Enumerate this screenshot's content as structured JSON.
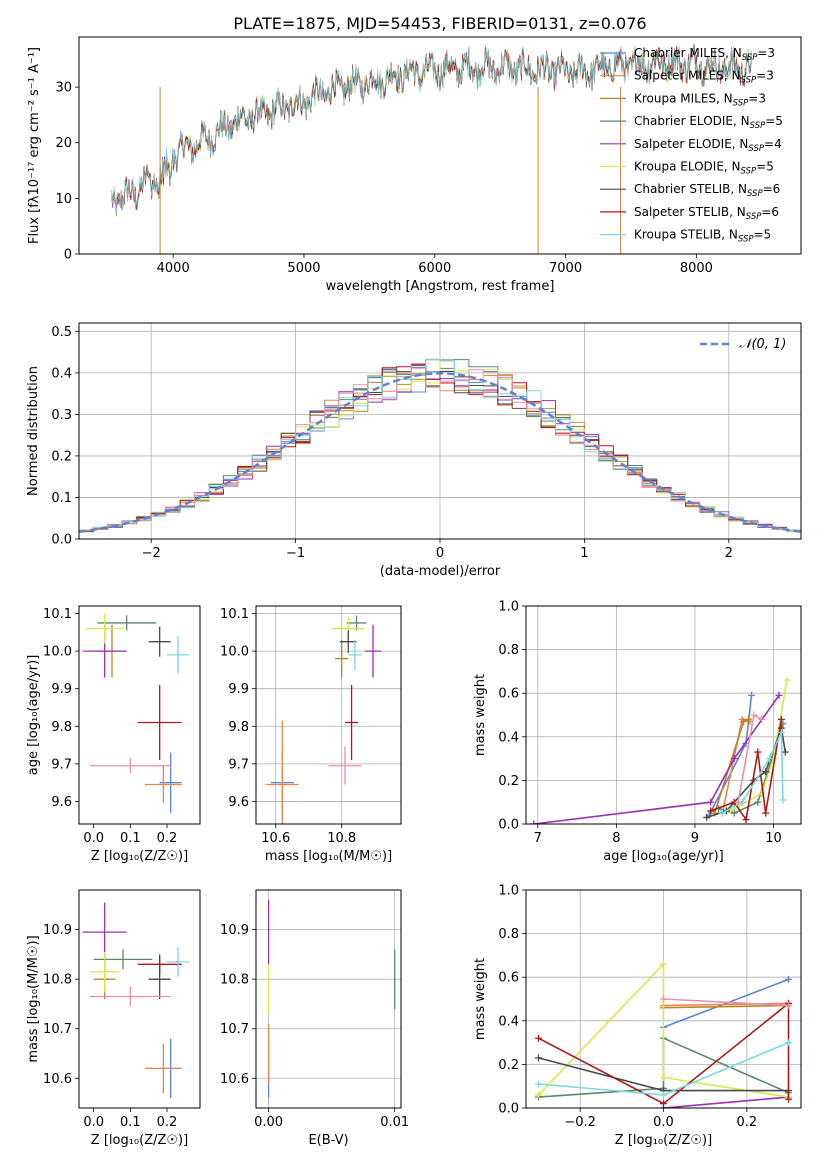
{
  "figure_title": "PLATE=1875, MJD=54453, FIBERID=0131, z=0.076",
  "colors": {
    "Chabrier MILES": "#5b84d6",
    "Salpeter MILES": "#e8854a",
    "Kroupa MILES": "#b8862a",
    "Chabrier ELODIE": "#5a8a6a",
    "Salpeter ELODIE": "#9b2fb5",
    "Kroupa ELODIE": "#d8e84a",
    "Chabrier STELIB": "#4a4a4a",
    "Salpeter STELIB": "#b01818",
    "Kroupa STELIB": "#7ad8e0",
    "pink": "#e890b0",
    "normal_curve": "#5b84d6"
  },
  "chart_data": [
    {
      "id": "spectrum",
      "type": "line",
      "title": "PLATE=1875, MJD=54453, FIBERID=0131, z=0.076",
      "xlabel": "wavelength [Angstrom, rest frame]",
      "ylabel": "Flux [fλ10⁻¹⁷ erg cm⁻² s⁻¹ A⁻¹]",
      "xlim": [
        3280,
        8800
      ],
      "ylim": [
        0,
        39
      ],
      "x_ticks": [
        4000,
        5000,
        6000,
        7000,
        8000
      ],
      "y_ticks": [
        0,
        10,
        20,
        30
      ],
      "legend_position": "top-right",
      "legend": [
        {
          "label": "Chabrier MILES, N",
          "sub": "SSP",
          "suffix": "=3"
        },
        {
          "label": "Salpeter MILES, N",
          "sub": "SSP",
          "suffix": "=3"
        },
        {
          "label": "Kroupa MILES, N",
          "sub": "SSP",
          "suffix": "=3"
        },
        {
          "label": "Chabrier ELODIE, N",
          "sub": "SSP",
          "suffix": "=5"
        },
        {
          "label": "Salpeter ELODIE, N",
          "sub": "SSP",
          "suffix": "=4"
        },
        {
          "label": "Kroupa ELODIE, N",
          "sub": "SSP",
          "suffix": "=5"
        },
        {
          "label": "Chabrier STELIB, N",
          "sub": "SSP",
          "suffix": "=6"
        },
        {
          "label": "Salpeter STELIB, N",
          "sub": "SSP",
          "suffix": "=6"
        },
        {
          "label": "Kroupa STELIB, N",
          "sub": "SSP",
          "suffix": "=5"
        }
      ],
      "continuum": {
        "x": [
          3530,
          3700,
          3850,
          4000,
          4200,
          4500,
          4800,
          5000,
          5200,
          5500,
          5800,
          6000,
          6300,
          6500,
          6700,
          6900,
          7100,
          7300,
          7500,
          7800,
          8000,
          8200,
          8400
        ],
        "y": [
          9.5,
          11,
          14,
          18,
          20,
          24,
          26,
          27.5,
          29.5,
          31,
          32.5,
          33,
          33.5,
          33.5,
          33.2,
          33,
          32.5,
          33.5,
          34,
          34.5,
          34,
          33.5,
          33.5
        ]
      }
    },
    {
      "id": "residual_hist",
      "type": "line",
      "xlabel": "(data-model)/error",
      "ylabel": "Normed distribution",
      "xlim": [
        -2.5,
        2.5
      ],
      "ylim": [
        0,
        0.52
      ],
      "x_ticks": [
        -2,
        -1,
        0,
        1,
        2
      ],
      "y_ticks": [
        0.0,
        0.1,
        0.2,
        0.3,
        0.4,
        0.5
      ],
      "legend_position": "top-right",
      "legend": [
        {
          "label": "𝒩(0, 1)"
        }
      ],
      "curve": "normal(0,1) pdf",
      "bin_width": 0.1
    },
    {
      "id": "age_vs_Z",
      "type": "scatter",
      "xlabel": "Z [log₁₀(Z/Z☉)]",
      "ylabel": "age  [log₁₀(age/yr)]",
      "xlim": [
        -0.04,
        0.29
      ],
      "ylim": [
        9.54,
        10.12
      ],
      "x_ticks": [
        0.0,
        0.1,
        0.2
      ],
      "y_ticks": [
        9.6,
        9.7,
        9.8,
        9.9,
        10.0,
        10.1
      ],
      "points": [
        {
          "model": "Chabrier MILES",
          "x": 0.21,
          "y": 9.65,
          "xerr": 0.03,
          "yerr": 0.08
        },
        {
          "model": "Salpeter MILES",
          "x": 0.19,
          "y": 9.645,
          "xerr": 0.05,
          "yerr": 0.05
        },
        {
          "model": "Kroupa MILES",
          "x": 0.05,
          "y": 10.0,
          "xerr": 0.04,
          "yerr": 0.07
        },
        {
          "model": "Chabrier ELODIE",
          "x": 0.09,
          "y": 10.075,
          "xerr": 0.08,
          "yerr": 0.02
        },
        {
          "model": "Salpeter ELODIE",
          "x": 0.03,
          "y": 10.0,
          "xerr": 0.06,
          "yerr": 0.07
        },
        {
          "model": "Kroupa ELODIE",
          "x": 0.03,
          "y": 10.06,
          "xerr": 0.05,
          "yerr": 0.04
        },
        {
          "model": "Chabrier STELIB",
          "x": 0.18,
          "y": 10.025,
          "xerr": 0.03,
          "yerr": 0.04
        },
        {
          "model": "Salpeter STELIB",
          "x": 0.18,
          "y": 9.81,
          "xerr": 0.06,
          "yerr": 0.1
        },
        {
          "model": "Kroupa STELIB",
          "x": 0.23,
          "y": 9.99,
          "xerr": 0.03,
          "yerr": 0.05
        },
        {
          "model": "pink",
          "x": 0.1,
          "y": 9.695,
          "xerr": 0.11,
          "yerr": 0.02
        }
      ]
    },
    {
      "id": "age_vs_mass",
      "type": "scatter",
      "xlabel": "mass [log₁₀(M/M☉)]",
      "ylabel": "",
      "xlim": [
        10.54,
        10.98
      ],
      "ylim": [
        9.54,
        10.12
      ],
      "x_ticks": [
        10.6,
        10.8
      ],
      "y_ticks": [
        9.6,
        9.7,
        9.8,
        9.9,
        10.0,
        10.1
      ],
      "points": [
        {
          "model": "Chabrier MILES",
          "x": 10.62,
          "y": 9.65,
          "xerr": 0.035,
          "yerr": 0.085
        },
        {
          "model": "Salpeter MILES",
          "x": 10.62,
          "y": 9.645,
          "xerr": 0.05,
          "yerr": 0.17
        },
        {
          "model": "Kroupa MILES",
          "x": 10.8,
          "y": 9.98,
          "xerr": 0.02,
          "yerr": 0.05
        },
        {
          "model": "Chabrier ELODIE",
          "x": 10.845,
          "y": 10.075,
          "xerr": 0.03,
          "yerr": 0.02
        },
        {
          "model": "Salpeter ELODIE",
          "x": 10.895,
          "y": 10.0,
          "xerr": 0.025,
          "yerr": 0.07
        },
        {
          "model": "Kroupa ELODIE",
          "x": 10.82,
          "y": 10.06,
          "xerr": 0.05,
          "yerr": 0.03
        },
        {
          "model": "Chabrier STELIB",
          "x": 10.82,
          "y": 10.025,
          "xerr": 0.025,
          "yerr": 0.03
        },
        {
          "model": "Salpeter STELIB",
          "x": 10.83,
          "y": 9.81,
          "xerr": 0.02,
          "yerr": 0.1
        },
        {
          "model": "Kroupa STELIB",
          "x": 10.84,
          "y": 9.99,
          "xerr": 0.02,
          "yerr": 0.04
        },
        {
          "model": "pink",
          "x": 10.81,
          "y": 9.695,
          "xerr": 0.05,
          "yerr": 0.05
        }
      ]
    },
    {
      "id": "weight_vs_age",
      "type": "line",
      "xlabel": "age  [log₁₀(age/yr)]",
      "ylabel": "mass weight",
      "xlim": [
        6.85,
        10.35
      ],
      "ylim": [
        0,
        1.0
      ],
      "x_ticks": [
        7,
        8,
        9,
        10
      ],
      "y_ticks": [
        0.0,
        0.2,
        0.4,
        0.6,
        0.8,
        1.0
      ],
      "series": [
        {
          "model": "Chabrier MILES",
          "x": [
            9.18,
            9.65,
            9.72
          ],
          "y": [
            0.04,
            0.37,
            0.59
          ]
        },
        {
          "model": "Salpeter MILES",
          "x": [
            9.35,
            9.6,
            9.7
          ],
          "y": [
            0.05,
            0.48,
            0.47
          ]
        },
        {
          "model": "Kroupa MILES",
          "x": [
            9.25,
            9.62,
            9.68
          ],
          "y": [
            0.05,
            0.47,
            0.48
          ]
        },
        {
          "model": "Chabrier ELODIE",
          "x": [
            9.3,
            9.5,
            9.8,
            10.0,
            10.12
          ],
          "y": [
            0.07,
            0.05,
            0.1,
            0.32,
            0.46
          ]
        },
        {
          "model": "Salpeter ELODIE",
          "x": [
            6.95,
            9.2,
            9.5,
            10.07
          ],
          "y": [
            0.0,
            0.1,
            0.3,
            0.59
          ]
        },
        {
          "model": "Kroupa ELODIE",
          "x": [
            9.45,
            9.85,
            10.0,
            10.17
          ],
          "y": [
            0.06,
            0.14,
            0.3,
            0.66
          ]
        },
        {
          "model": "Chabrier STELIB",
          "x": [
            9.15,
            9.4,
            9.75,
            9.9,
            10.1,
            10.15
          ],
          "y": [
            0.03,
            0.06,
            0.2,
            0.24,
            0.44,
            0.33
          ]
        },
        {
          "model": "Salpeter STELIB",
          "x": [
            9.2,
            9.5,
            9.65,
            9.8,
            9.9,
            10.1
          ],
          "y": [
            0.06,
            0.1,
            0.02,
            0.33,
            0.05,
            0.48
          ]
        },
        {
          "model": "Kroupa STELIB",
          "x": [
            9.35,
            9.6,
            9.95,
            10.1,
            10.12
          ],
          "y": [
            0.05,
            0.1,
            0.3,
            0.42,
            0.11
          ]
        },
        {
          "model": "pink",
          "x": [
            9.55,
            9.75,
            9.85
          ],
          "y": [
            0.1,
            0.5,
            0.48
          ]
        }
      ]
    },
    {
      "id": "mass_vs_Z",
      "type": "scatter",
      "xlabel": "Z [log₁₀(Z/Z☉)]",
      "ylabel": "mass [log₁₀(M/M☉)]",
      "xlim": [
        -0.04,
        0.29
      ],
      "ylim": [
        10.54,
        10.98
      ],
      "x_ticks": [
        0.0,
        0.1,
        0.2
      ],
      "y_ticks": [
        10.6,
        10.7,
        10.8,
        10.9
      ],
      "points": [
        {
          "model": "Chabrier MILES",
          "x": 0.21,
          "y": 10.62,
          "xerr": 0.03,
          "yerr": 0.06
        },
        {
          "model": "Salpeter MILES",
          "x": 0.19,
          "y": 10.62,
          "xerr": 0.05,
          "yerr": 0.05
        },
        {
          "model": "Kroupa MILES",
          "x": 0.03,
          "y": 10.8,
          "xerr": 0.03,
          "yerr": 0.04
        },
        {
          "model": "Chabrier ELODIE",
          "x": 0.08,
          "y": 10.84,
          "xerr": 0.08,
          "yerr": 0.02
        },
        {
          "model": "Salpeter ELODIE",
          "x": 0.03,
          "y": 10.895,
          "xerr": 0.06,
          "yerr": 0.06
        },
        {
          "model": "Kroupa ELODIE",
          "x": 0.03,
          "y": 10.815,
          "xerr": 0.04,
          "yerr": 0.04
        },
        {
          "model": "Chabrier STELIB",
          "x": 0.18,
          "y": 10.8,
          "xerr": 0.03,
          "yerr": 0.04
        },
        {
          "model": "Salpeter STELIB",
          "x": 0.18,
          "y": 10.83,
          "xerr": 0.06,
          "yerr": 0.02
        },
        {
          "model": "Kroupa STELIB",
          "x": 0.23,
          "y": 10.835,
          "xerr": 0.03,
          "yerr": 0.03
        },
        {
          "model": "pink",
          "x": 0.1,
          "y": 10.765,
          "xerr": 0.11,
          "yerr": 0.02
        }
      ]
    },
    {
      "id": "mass_vs_ebv",
      "type": "scatter",
      "xlabel": "E(B-V)",
      "ylabel": "",
      "xlim": [
        -0.001,
        0.0105
      ],
      "ylim": [
        10.54,
        10.98
      ],
      "x_ticks": [
        0.0,
        0.01
      ],
      "y_ticks": [
        10.6,
        10.7,
        10.8,
        10.9
      ],
      "points": [
        {
          "model": "Chabrier MILES",
          "x": 0.0,
          "y": 10.62,
          "xerr": 0,
          "yerr": 0.06
        },
        {
          "model": "Salpeter MILES",
          "x": 0.0,
          "y": 10.65,
          "xerr": 0,
          "yerr": 0.06
        },
        {
          "model": "Salpeter ELODIE",
          "x": 0.0,
          "y": 10.895,
          "xerr": 0,
          "yerr": 0.065
        },
        {
          "model": "Kroupa ELODIE",
          "x": 0.0,
          "y": 10.78,
          "xerr": 0,
          "yerr": 0.05
        },
        {
          "model": "Chabrier ELODIE",
          "x": 0.01,
          "y": 10.8,
          "xerr": 0,
          "yerr": 0.06
        }
      ]
    },
    {
      "id": "weight_vs_Z",
      "type": "line",
      "xlabel": "Z [log₁₀(Z/Z☉)]",
      "ylabel": "mass weight",
      "xlim": [
        -0.33,
        0.33
      ],
      "ylim": [
        0,
        1.0
      ],
      "x_ticks": [
        -0.2,
        0.0,
        0.2
      ],
      "y_ticks": [
        0.0,
        0.2,
        0.4,
        0.6,
        0.8,
        1.0
      ],
      "series": [
        {
          "model": "Chabrier MILES",
          "x": [
            0.0,
            0.3
          ],
          "y": [
            0.37,
            0.59
          ]
        },
        {
          "model": "Salpeter MILES",
          "x": [
            0.0,
            0.3
          ],
          "y": [
            0.47,
            0.48
          ]
        },
        {
          "model": "Kroupa MILES",
          "x": [
            0.0,
            0.3
          ],
          "y": [
            0.46,
            0.47
          ]
        },
        {
          "model": "Chabrier ELODIE",
          "x": [
            -0.3,
            0.0,
            0.0,
            0.3
          ],
          "y": [
            0.05,
            0.09,
            0.32,
            0.07
          ]
        },
        {
          "model": "Salpeter ELODIE",
          "x": [
            0.0,
            0.3
          ],
          "y": [
            0.0,
            0.05
          ]
        },
        {
          "model": "Kroupa ELODIE",
          "x": [
            -0.3,
            0.0,
            0.0,
            0.3
          ],
          "y": [
            0.06,
            0.66,
            0.14,
            0.05
          ]
        },
        {
          "model": "Chabrier STELIB",
          "x": [
            -0.3,
            0.0,
            0.3
          ],
          "y": [
            0.23,
            0.08,
            0.08
          ]
        },
        {
          "model": "Salpeter STELIB",
          "x": [
            -0.3,
            0.0,
            0.3,
            0.3
          ],
          "y": [
            0.32,
            0.02,
            0.48,
            0.04
          ]
        },
        {
          "model": "Kroupa STELIB",
          "x": [
            -0.3,
            0.0,
            0.3
          ],
          "y": [
            0.11,
            0.06,
            0.3
          ]
        },
        {
          "model": "pink",
          "x": [
            0.0,
            0.3
          ],
          "y": [
            0.5,
            0.47
          ]
        }
      ]
    }
  ]
}
